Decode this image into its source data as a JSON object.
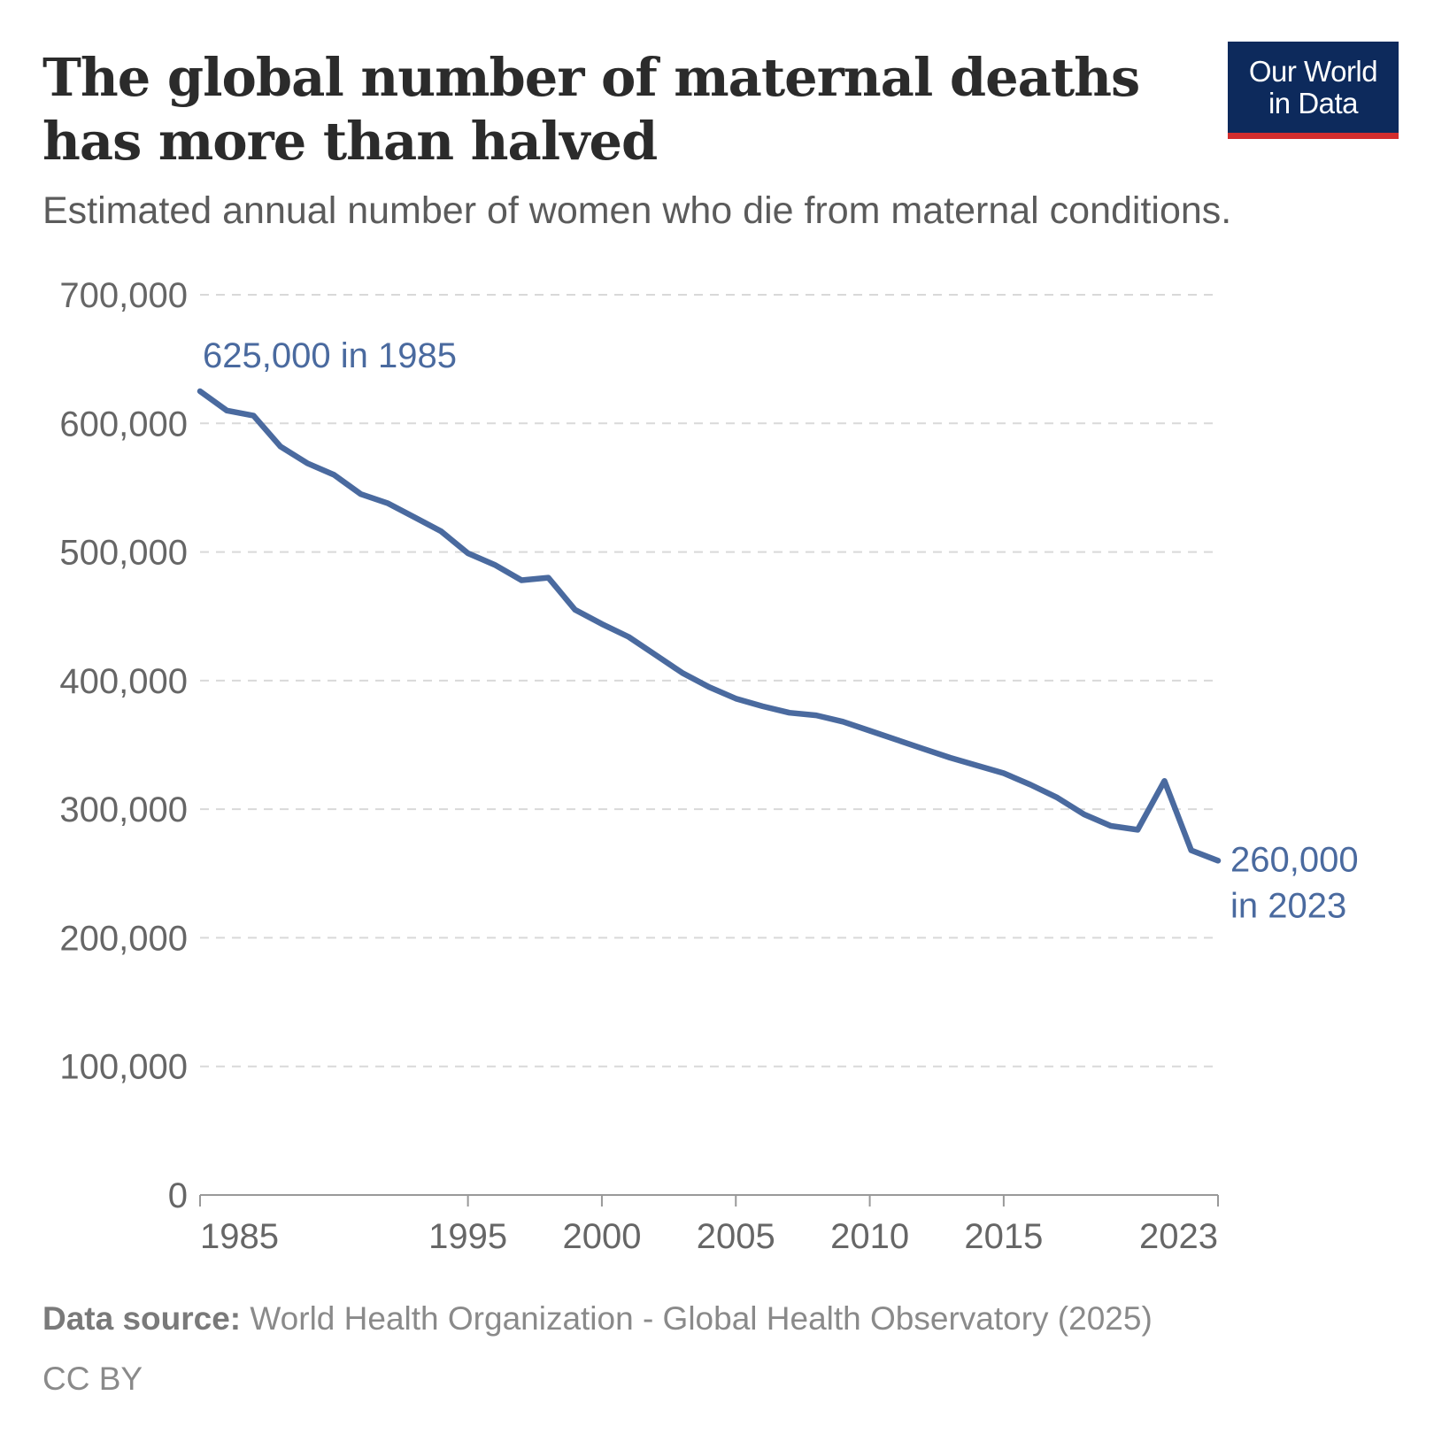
{
  "header": {
    "title_line1": "The global number of maternal deaths",
    "title_line2": "has more than halved",
    "subtitle": "Estimated annual number of women who die from maternal conditions."
  },
  "logo": {
    "line1": "Our World",
    "line2": "in Data",
    "bg_color": "#0d2a5c",
    "stripe_color": "#d32d2d"
  },
  "footer": {
    "source_label": "Data source:",
    "source_text": " World Health Organization - Global Health Observatory (2025)",
    "license": "CC BY"
  },
  "chart_data": {
    "type": "line",
    "title": "The global number of maternal deaths has more than halved",
    "subtitle": "Estimated annual number of women who die from maternal conditions.",
    "xlabel": "",
    "ylabel": "",
    "xlim": [
      1985,
      2023
    ],
    "ylim": [
      0,
      700000
    ],
    "x_ticks": [
      1985,
      1995,
      2000,
      2005,
      2010,
      2015,
      2023
    ],
    "x_tick_labels": [
      "1985",
      "1995",
      "2000",
      "2005",
      "2010",
      "2015",
      "2023"
    ],
    "y_ticks": [
      0,
      100000,
      200000,
      300000,
      400000,
      500000,
      600000,
      700000
    ],
    "y_tick_labels": [
      "0",
      "100,000",
      "200,000",
      "300,000",
      "400,000",
      "500,000",
      "600,000",
      "700,000"
    ],
    "grid": "horizontal dashed",
    "series": [
      {
        "color": "#4a6a9f",
        "x": [
          1985,
          1986,
          1987,
          1988,
          1989,
          1990,
          1991,
          1992,
          1993,
          1994,
          1995,
          1996,
          1997,
          1998,
          1999,
          2000,
          2001,
          2002,
          2003,
          2004,
          2005,
          2006,
          2007,
          2008,
          2009,
          2010,
          2011,
          2012,
          2013,
          2014,
          2015,
          2016,
          2017,
          2018,
          2019,
          2020,
          2021,
          2022,
          2023
        ],
        "y": [
          625000,
          610000,
          606000,
          582000,
          569000,
          560000,
          545000,
          538000,
          527000,
          516000,
          499000,
          490000,
          478000,
          480000,
          455000,
          444000,
          434000,
          420000,
          406000,
          395000,
          386000,
          380000,
          375000,
          373000,
          368000,
          361000,
          354000,
          347000,
          340000,
          334000,
          328000,
          319000,
          309000,
          296000,
          287000,
          284000,
          322000,
          268000,
          260000
        ]
      }
    ],
    "annotations": [
      {
        "text": "625,000 in 1985",
        "x": 1985,
        "y": 625000
      },
      {
        "text_line1": "260,000",
        "text_line2": "in 2023",
        "x": 2023,
        "y": 260000
      }
    ]
  }
}
